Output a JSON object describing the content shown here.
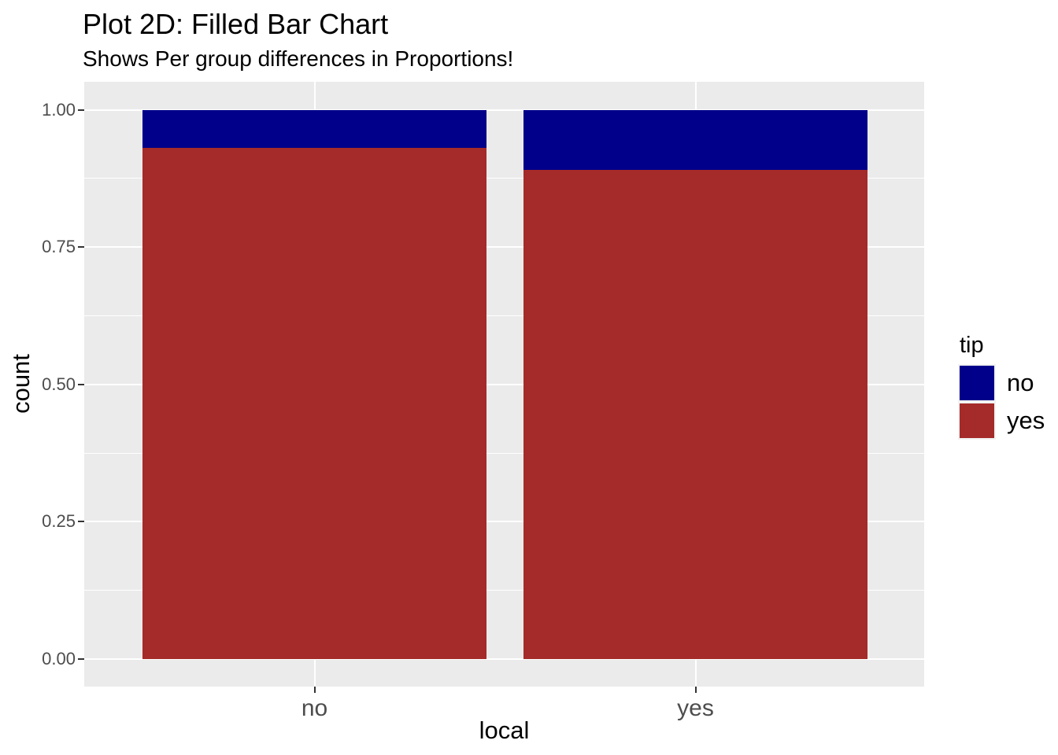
{
  "chart_data": {
    "type": "bar",
    "subtype": "stacked-filled-proportion",
    "title": "Plot 2D: Filled Bar Chart",
    "subtitle": "Shows Per group differences in Proportions!",
    "xlabel": "local",
    "ylabel": "count",
    "categories": [
      "no",
      "yes"
    ],
    "series": [
      {
        "name": "yes",
        "color": "#A52A2A",
        "values": [
          0.93,
          0.89
        ]
      },
      {
        "name": "no",
        "color": "#00008B",
        "values": [
          0.07,
          0.11
        ]
      }
    ],
    "stack_note": "series listed bottom-to-top; 'yes' (red) on bottom, 'no' (blue) on top",
    "ylim": [
      0,
      1
    ],
    "y_ticks": [
      0,
      0.25,
      0.5,
      0.75,
      1
    ],
    "y_tick_labels": [
      "0.00",
      "0.25",
      "0.50",
      "0.75",
      "1.00"
    ],
    "y_minor_breaks": [
      0.125,
      0.375,
      0.625,
      0.875
    ],
    "grid": true,
    "legend_title": "tip",
    "legend_position": "right",
    "legend_entries": [
      {
        "label": "no",
        "color": "#00008B"
      },
      {
        "label": "yes",
        "color": "#A52A2A"
      }
    ],
    "colors": {
      "panel_bg": "#EBEBEB",
      "grid": "#FFFFFF",
      "tick_mark": "#333333",
      "tick_label": "#4D4D4D",
      "axis_title": "#000000",
      "legend_key_bg": "#F2F2F2",
      "background": "#FFFFFF"
    }
  }
}
